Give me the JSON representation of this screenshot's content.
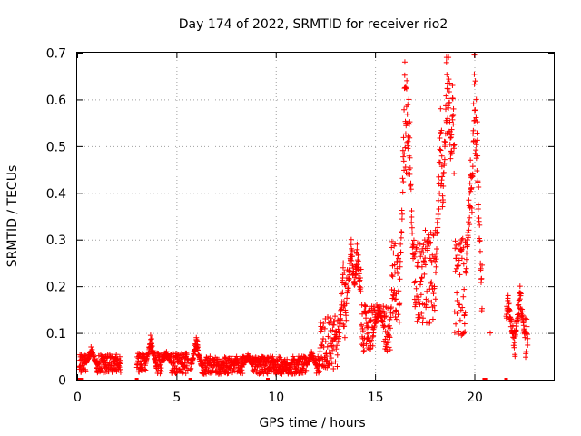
{
  "chart_data": {
    "type": "scatter",
    "title": "Day 174 of 2022, SRMTID for receiver rio2",
    "xlabel": "GPS time / hours",
    "ylabel": "SRMTID / TECUs",
    "xlim": [
      0,
      24
    ],
    "ylim": [
      0,
      0.7
    ],
    "xticks": [
      0,
      5,
      10,
      15,
      20
    ],
    "xtick_labels": [
      "0",
      "5",
      "10",
      "15",
      "20"
    ],
    "yticks": [
      0,
      0.1,
      0.2,
      0.3,
      0.4,
      0.5,
      0.6,
      0.7
    ],
    "ytick_labels": [
      "0",
      "0.1",
      "0.2",
      "0.3",
      "0.4",
      "0.5",
      "0.6",
      "0.7"
    ],
    "grid": true,
    "marker": "+",
    "color": "#ff0000",
    "series": [
      {
        "name": "SRMTID",
        "segments": [
          {
            "x_start": 0.1,
            "x_end": 2.2,
            "baseline": 0.035,
            "spread": 0.02,
            "peaks": [
              [
                0.7,
                0.07
              ]
            ]
          },
          {
            "x_start": 3.0,
            "x_end": 5.6,
            "baseline": 0.035,
            "spread": 0.022,
            "peaks": [
              [
                3.7,
                0.095
              ],
              [
                4.5,
                0.06
              ]
            ]
          },
          {
            "x_start": 5.7,
            "x_end": 9.8,
            "baseline": 0.03,
            "spread": 0.02,
            "peaks": [
              [
                6.0,
                0.09
              ],
              [
                8.6,
                0.055
              ]
            ]
          },
          {
            "x_start": 9.8,
            "x_end": 12.2,
            "baseline": 0.03,
            "spread": 0.02,
            "peaks": [
              [
                11.8,
                0.06
              ]
            ]
          },
          {
            "x_start": 12.2,
            "x_end": 13.4,
            "baseline": 0.08,
            "spread": 0.06,
            "peaks": [
              [
                13.4,
                0.25
              ]
            ]
          },
          {
            "x_start": 13.4,
            "x_end": 14.3,
            "baseline": 0.16,
            "spread": 0.08,
            "peaks": [
              [
                13.8,
                0.3
              ],
              [
                14.1,
                0.29
              ]
            ]
          },
          {
            "x_start": 14.3,
            "x_end": 15.8,
            "baseline": 0.11,
            "spread": 0.05,
            "peaks": [
              [
                15.2,
                0.16
              ]
            ]
          },
          {
            "x_start": 15.8,
            "x_end": 17.5,
            "baseline": 0.21,
            "spread": 0.09,
            "peaks": [
              [
                16.5,
                0.68
              ],
              [
                16.6,
                0.64
              ],
              [
                16.7,
                0.6
              ]
            ]
          },
          {
            "x_start": 17.5,
            "x_end": 18.4,
            "baseline": 0.22,
            "spread": 0.1,
            "peaks": [
              [
                18.3,
                0.58
              ]
            ]
          },
          {
            "x_start": 18.4,
            "x_end": 19.0,
            "baseline": 0.3,
            "spread": 0.12,
            "peaks": [
              [
                18.6,
                0.69
              ],
              [
                18.7,
                0.69
              ],
              [
                18.9,
                0.63
              ]
            ]
          },
          {
            "x_start": 19.0,
            "x_end": 20.4,
            "baseline": 0.2,
            "spread": 0.11,
            "peaks": [
              [
                19.8,
                0.47
              ],
              [
                20.0,
                0.695
              ],
              [
                20.1,
                0.6
              ]
            ]
          },
          {
            "x_start": 21.6,
            "x_end": 22.7,
            "baseline": 0.09,
            "spread": 0.045,
            "peaks": [
              [
                22.3,
                0.2
              ],
              [
                21.7,
                0.18
              ]
            ]
          }
        ],
        "outliers": [
          [
            20.8,
            0.1
          ]
        ],
        "zero_marks": [
          0.1,
          0.2,
          3.0,
          5.7,
          9.6,
          20.5,
          20.6,
          21.6
        ]
      }
    ]
  }
}
